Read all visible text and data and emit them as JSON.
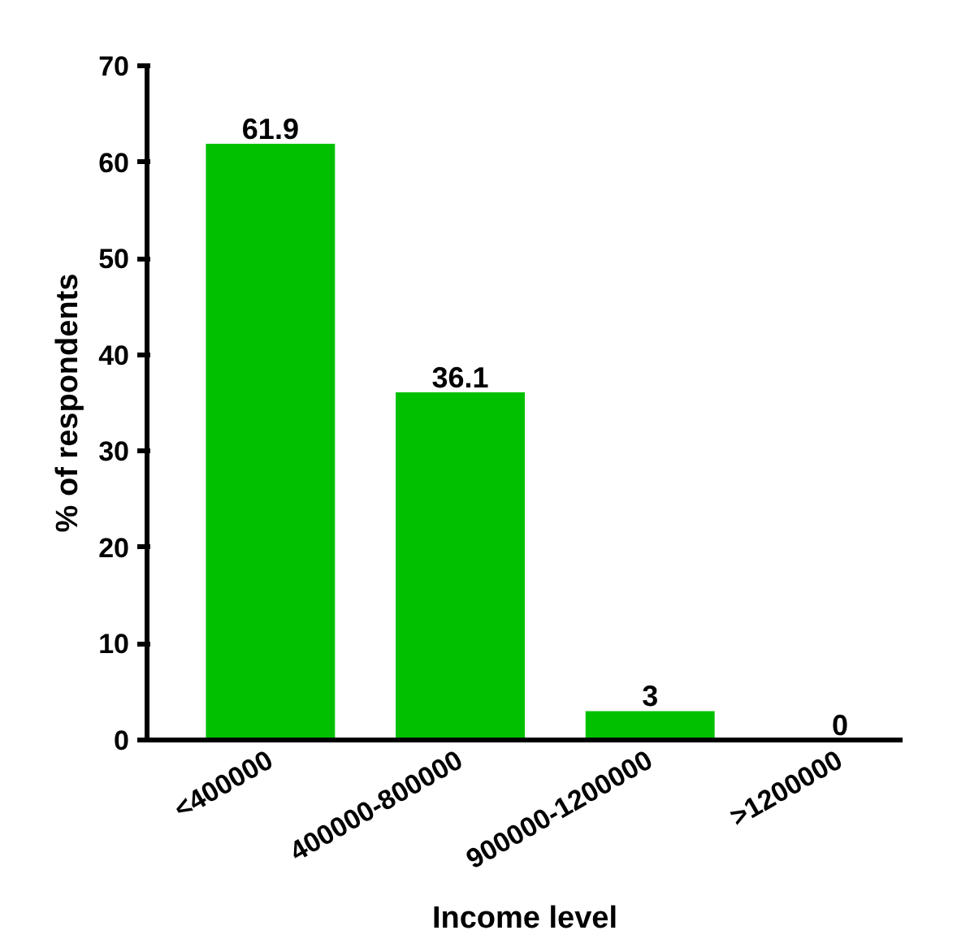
{
  "chart_data": {
    "type": "bar",
    "xlabel": "Income level",
    "ylabel": "% of respondents",
    "categories": [
      "<400000",
      "400000-800000",
      "900000-1200000",
      ">1200000"
    ],
    "values": [
      61.9,
      36.1,
      3,
      0
    ],
    "color": "#00c000",
    "ylim": [
      0,
      70
    ],
    "yticks": [
      0,
      10,
      20,
      30,
      40,
      50,
      60,
      70
    ],
    "data_labels": true,
    "grid": false
  }
}
